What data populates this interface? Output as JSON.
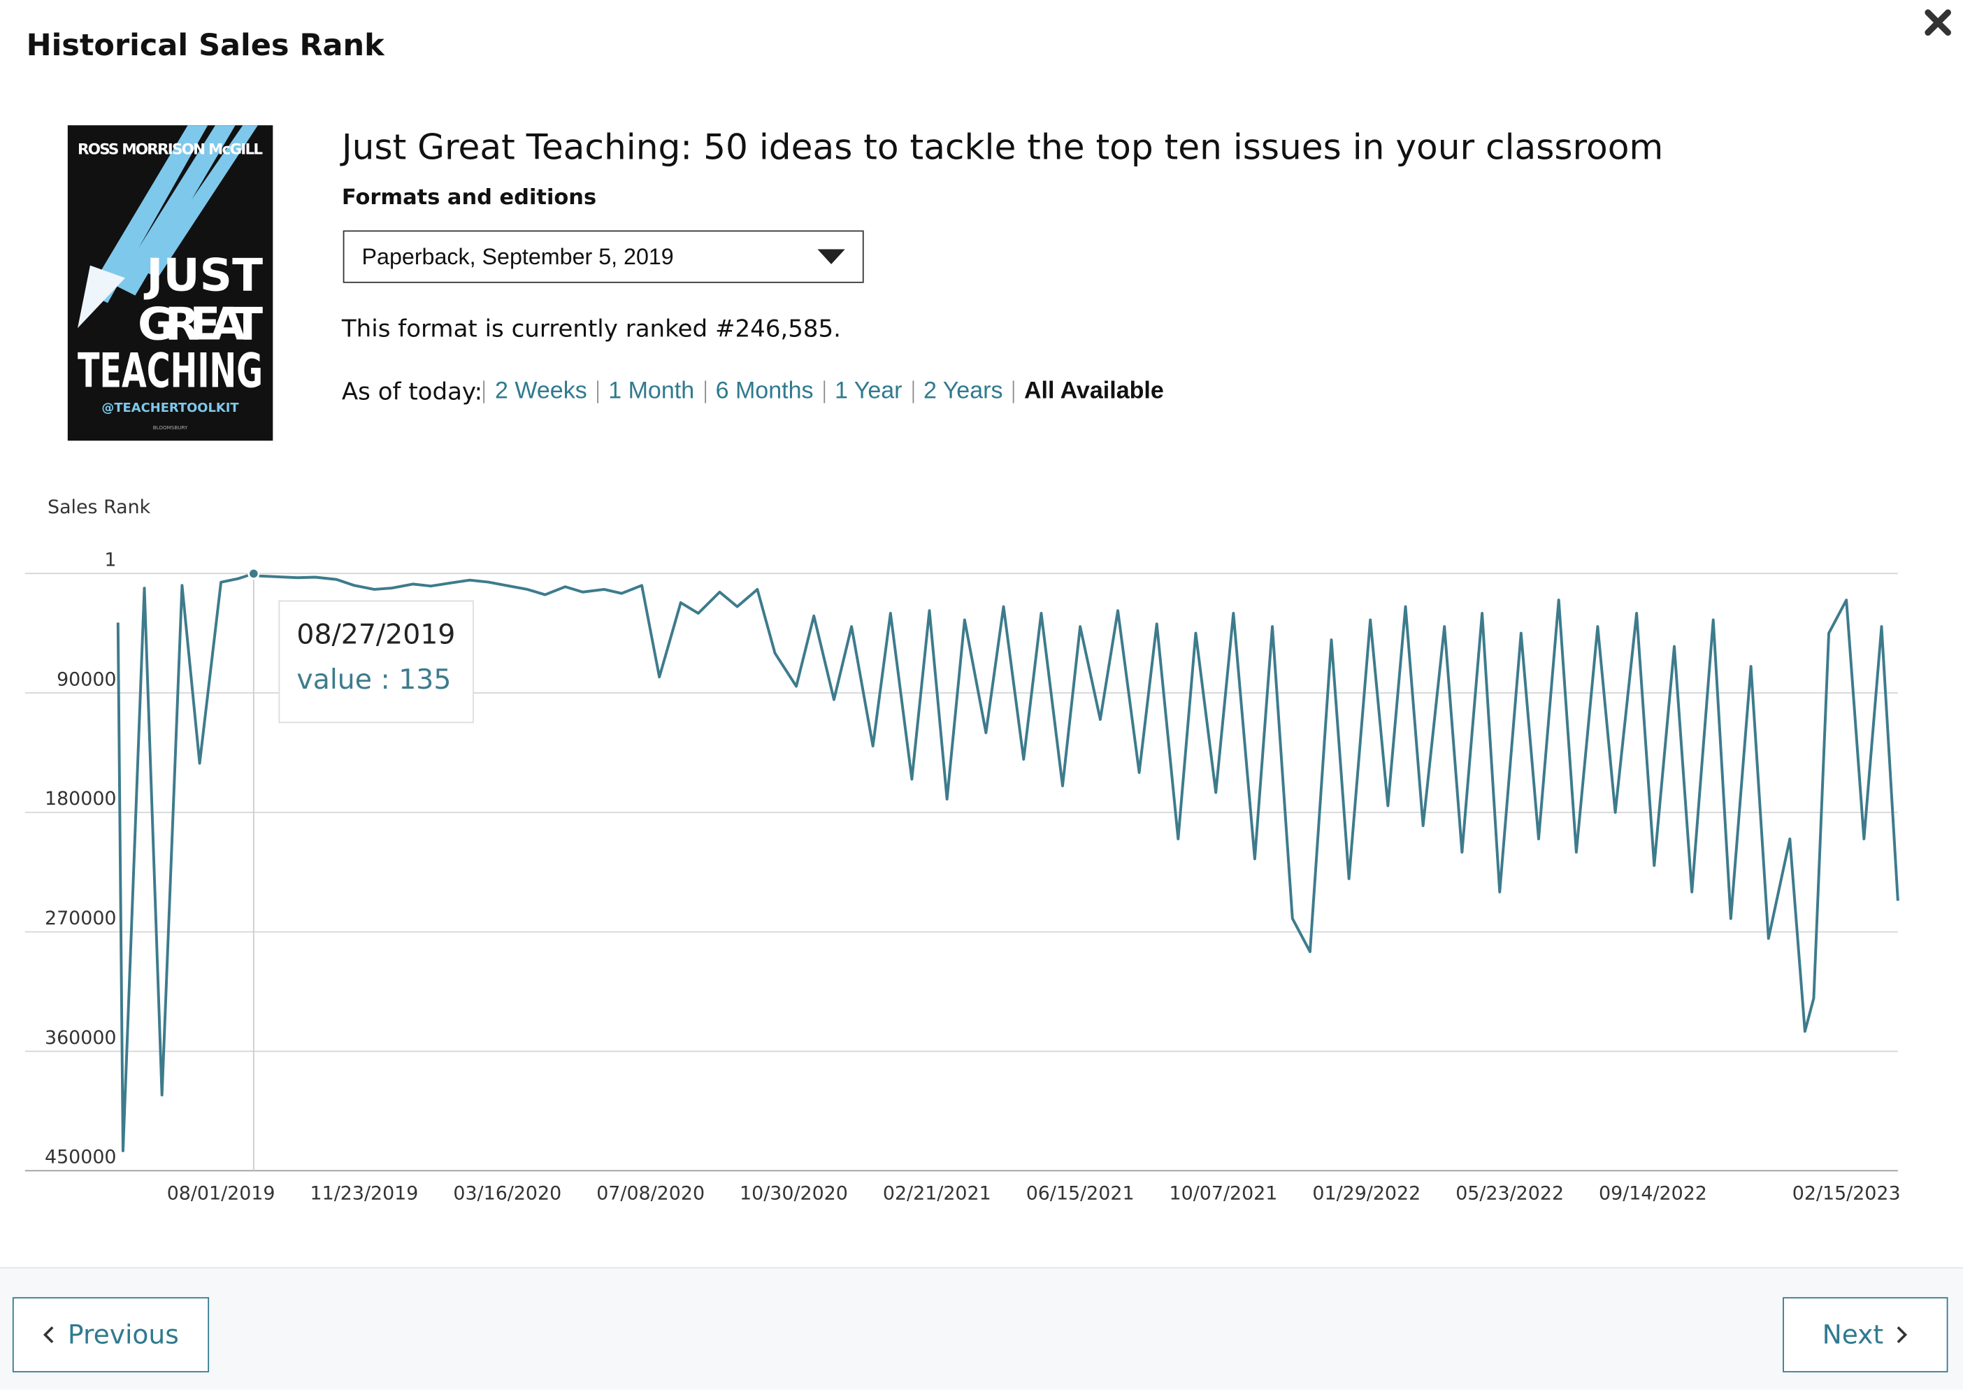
{
  "header": {
    "title": "Historical Sales Rank"
  },
  "book": {
    "title": "Just Great Teaching: 50 ideas to tackle the top ten issues in your classroom",
    "cover": {
      "author": "ROSS MORRISON McGILL",
      "lines": [
        "JUST",
        "GREAT",
        "TEACHING"
      ],
      "handle": "@TEACHERTOOLKIT",
      "publisher": "BLOOMSBURY"
    }
  },
  "formats": {
    "label": "Formats and editions",
    "selected": "Paperback, September 5, 2019"
  },
  "rank_text": "This format is currently ranked #246,585.",
  "range": {
    "label": "As of today:",
    "options": [
      "2 Weeks",
      "1 Month",
      "6 Months",
      "1 Year",
      "2 Years",
      "All Available"
    ],
    "selected": "All Available"
  },
  "chart_data": {
    "type": "line",
    "y_label": "Sales Rank",
    "color": "#3d7b8c",
    "x": [
      "05/11/2019",
      "05/15/2019",
      "06/01/2019",
      "06/15/2019",
      "07/01/2019",
      "07/15/2019",
      "08/01/2019",
      "08/15/2019",
      "08/27/2019",
      "09/01/2019",
      "09/15/2019",
      "10/01/2019",
      "10/15/2019",
      "11/01/2019",
      "11/15/2019",
      "12/01/2019",
      "12/15/2019",
      "01/01/2020",
      "01/15/2020",
      "02/01/2020",
      "02/15/2020",
      "03/01/2020",
      "03/15/2020",
      "04/01/2020",
      "04/15/2020",
      "05/01/2020",
      "05/15/2020",
      "06/01/2020",
      "06/15/2020",
      "07/01/2020",
      "07/15/2020",
      "08/01/2020",
      "08/15/2020",
      "09/01/2020",
      "09/15/2020",
      "10/01/2020",
      "10/15/2020",
      "11/01/2020",
      "11/15/2020",
      "12/01/2020",
      "12/15/2020",
      "01/01/2021",
      "01/15/2021",
      "02/01/2021",
      "02/15/2021",
      "03/01/2021",
      "03/15/2021",
      "04/01/2021",
      "04/15/2021",
      "05/01/2021",
      "05/15/2021",
      "06/01/2021",
      "06/15/2021",
      "07/01/2021",
      "07/15/2021",
      "08/01/2021",
      "08/15/2021",
      "09/01/2021",
      "09/15/2021",
      "10/01/2021",
      "10/15/2021",
      "11/01/2021",
      "11/15/2021",
      "12/01/2021",
      "12/15/2021",
      "01/01/2022",
      "01/15/2022",
      "02/01/2022",
      "02/15/2022",
      "03/01/2022",
      "03/15/2022",
      "04/01/2022",
      "04/15/2022",
      "05/01/2022",
      "05/15/2022",
      "06/01/2022",
      "06/15/2022",
      "07/01/2022",
      "07/15/2022",
      "08/01/2022",
      "08/15/2022",
      "09/01/2022",
      "09/15/2022",
      "10/01/2022",
      "10/15/2022",
      "11/01/2022",
      "11/15/2022",
      "12/01/2022",
      "12/15/2022",
      "01/01/2023",
      "01/13/2023",
      "01/20/2023",
      "02/01/2023",
      "02/15/2023",
      "03/01/2023",
      "03/15/2023",
      "03/28/2023"
    ],
    "values": [
      37000,
      435000,
      11000,
      393000,
      9000,
      143000,
      6600,
      3800,
      135,
      1900,
      2500,
      3200,
      2800,
      4500,
      9000,
      12000,
      11000,
      8000,
      9500,
      7000,
      5000,
      6500,
      9000,
      12000,
      16000,
      10000,
      14000,
      12000,
      15000,
      9000,
      78000,
      22000,
      30000,
      14000,
      25000,
      12000,
      60000,
      85000,
      32000,
      95000,
      40000,
      130000,
      30000,
      155000,
      28000,
      170000,
      35000,
      120000,
      25000,
      140000,
      30000,
      160000,
      40000,
      110000,
      28000,
      150000,
      38000,
      200000,
      45000,
      165000,
      30000,
      215000,
      40000,
      260000,
      285000,
      50000,
      230000,
      35000,
      175000,
      25000,
      190000,
      40000,
      210000,
      30000,
      240000,
      45000,
      200000,
      20000,
      210000,
      40000,
      180000,
      30000,
      220000,
      55000,
      240000,
      35000,
      260000,
      70000,
      275000,
      200000,
      345000,
      320000,
      45000,
      20000,
      200000,
      40000,
      246585
    ],
    "xlim": [
      "02/26/2019",
      "03/28/2023"
    ],
    "xticks": [
      "08/01/2019",
      "11/23/2019",
      "03/16/2020",
      "07/08/2020",
      "10/30/2020",
      "02/21/2021",
      "06/15/2021",
      "10/07/2021",
      "01/29/2022",
      "05/23/2022",
      "09/14/2022",
      "02/15/2023"
    ],
    "ylim": [
      1,
      450000
    ],
    "yticks": [
      1,
      90000,
      180000,
      270000,
      360000,
      450000
    ],
    "y_inverted": true,
    "grid": true
  },
  "tooltip": {
    "date": "08/27/2019",
    "text": "value : 135",
    "index": 8
  },
  "footer": {
    "previous": "Previous",
    "next": "Next"
  }
}
